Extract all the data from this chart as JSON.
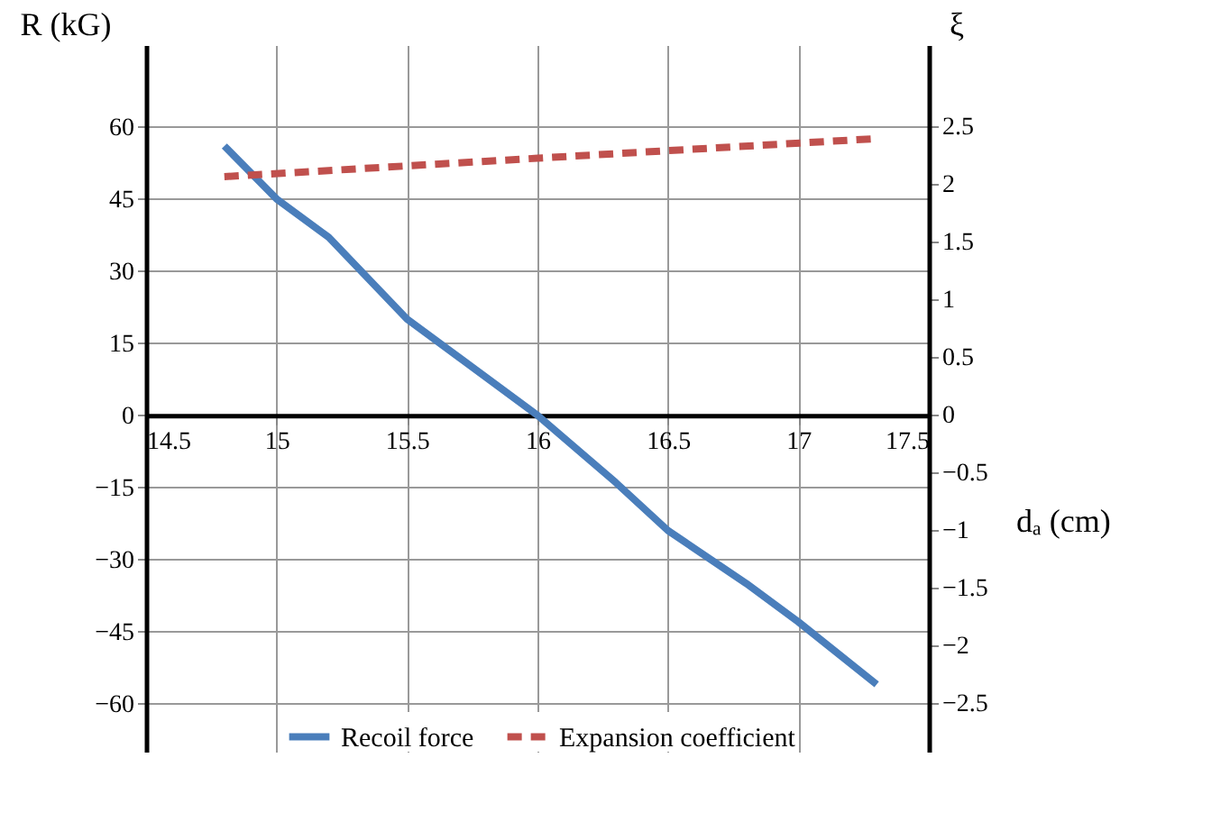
{
  "chart_data": {
    "type": "line",
    "xlabel": "dₐ (cm)",
    "ylabel": "R (kG)",
    "y2label": "ξ",
    "xlim": [
      14.5,
      17.5
    ],
    "xticks": [
      14.5,
      15,
      15.5,
      16,
      16.5,
      17,
      17.5
    ],
    "ylim": [
      -70,
      77
    ],
    "yticks": [
      -60,
      -45,
      -30,
      -15,
      0,
      15,
      30,
      45,
      60
    ],
    "y2lim": [
      -2.92,
      3.2
    ],
    "y2ticks": [
      -2.5,
      -2,
      -1.5,
      -1,
      -0.5,
      0,
      0.5,
      1,
      1.5,
      2,
      2.5
    ],
    "grid": true,
    "legend": "bottom",
    "marker": "none",
    "series": [
      {
        "name": "Recoil force",
        "color": "#4a7ebb",
        "line_style": "solid",
        "x": [
          14.8,
          15,
          15.2,
          15.5,
          16,
          16.3,
          16.5,
          16.8,
          17,
          17.3
        ],
        "values": [
          56,
          45,
          37,
          20,
          0,
          -14,
          -24,
          -35,
          -43,
          -56
        ]
      },
      {
        "name": "Expansion coefficient",
        "color": "#c0504d",
        "line_style": "dashed",
        "axis": "y2",
        "x": [
          14.8,
          16,
          17.3
        ],
        "values": [
          2.06,
          2.22,
          2.39
        ]
      }
    ]
  }
}
